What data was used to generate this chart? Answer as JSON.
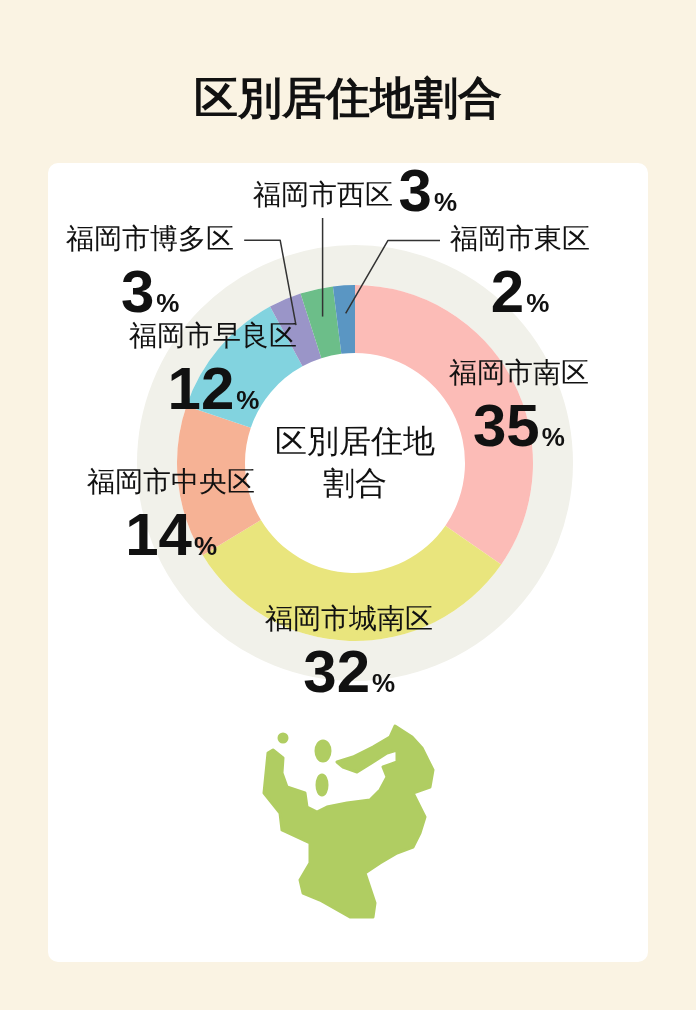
{
  "chart_data": {
    "type": "donut",
    "title": "区別居住地割合",
    "categories": [
      "福岡市南区",
      "福岡市城南区",
      "福岡市中央区",
      "福岡市早良区",
      "福岡市博多区",
      "福岡市西区",
      "福岡市東区"
    ],
    "values": [
      35,
      32,
      14,
      12,
      3,
      3,
      2
    ],
    "colors": [
      "#fcbcb7",
      "#e9e57d",
      "#f6b295",
      "#82d3df",
      "#9a95c8",
      "#6cbe89",
      "#5a96c3"
    ],
    "value_labels": [
      "35%",
      "32%",
      "14%",
      "12%",
      "3%",
      "3%",
      "2%"
    ],
    "annotations": [
      "区別居住地割合"
    ]
  }
}
